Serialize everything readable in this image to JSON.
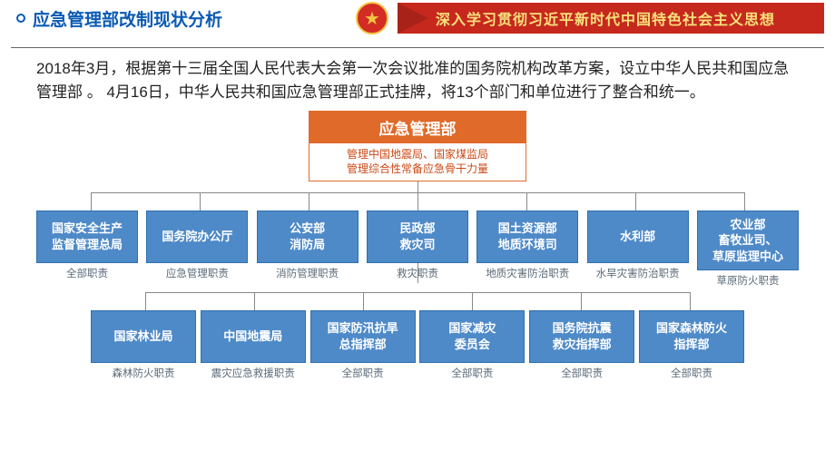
{
  "colors": {
    "header_blue": "#0a5ab4",
    "banner_red": "#c7281e",
    "banner_text": "#f8e17b",
    "emblem_red": "#d22c24",
    "emblem_gold": "#f5c542",
    "root_orange": "#e06a2a",
    "root_sub_text": "#c94a17",
    "dept_blue": "#4e8ac8",
    "dept_border": "#2f6fae",
    "duty_text": "#5a6a78",
    "divider": "#666666",
    "para_text": "#222222"
  },
  "header": {
    "title": "应急管理部改制现状分析",
    "banner": "深入学习贯彻习近平新时代中国特色社会主义思想"
  },
  "paragraph": "2018年3月，根据第十三届全国人民代表大会第一次会议批准的国务院机构改革方案，设立中华人民共和国应急管理部 。 4月16日，中华人民共和国应急管理部正式挂牌，将13个部门和单位进行了整合和统一。",
  "org": {
    "root_title": "应急管理部",
    "root_sub1": "管理中国地震局、国家煤监局",
    "root_sub2": "管理综合性常备应急骨干力量",
    "row1": [
      {
        "name": "国家安全生产\n监督管理总局",
        "duty": "全部职责"
      },
      {
        "name": "国务院办公厅",
        "duty": "应急管理职责"
      },
      {
        "name": "公安部\n消防局",
        "duty": "消防管理职责"
      },
      {
        "name": "民政部\n救灾司",
        "duty": "救灾职责"
      },
      {
        "name": "国土资源部\n地质环境司",
        "duty": "地质灾害防治职责"
      },
      {
        "name": "水利部",
        "duty": "水旱灾害防治职责"
      },
      {
        "name": "农业部\n畜牧业司、\n草原监理中心",
        "duty": "草原防火职责"
      }
    ],
    "row2": [
      {
        "name": "国家林业局",
        "duty": "森林防火职责"
      },
      {
        "name": "中国地震局",
        "duty": "震灾应急救援职责"
      },
      {
        "name": "国家防汛抗旱\n总指挥部",
        "duty": "全部职责"
      },
      {
        "name": "国家减灾\n委员会",
        "duty": "全部职责"
      },
      {
        "name": "国务院抗震\n救灾指挥部",
        "duty": "全部职责"
      },
      {
        "name": "国家森林防火\n指挥部",
        "duty": "全部职责"
      }
    ]
  }
}
